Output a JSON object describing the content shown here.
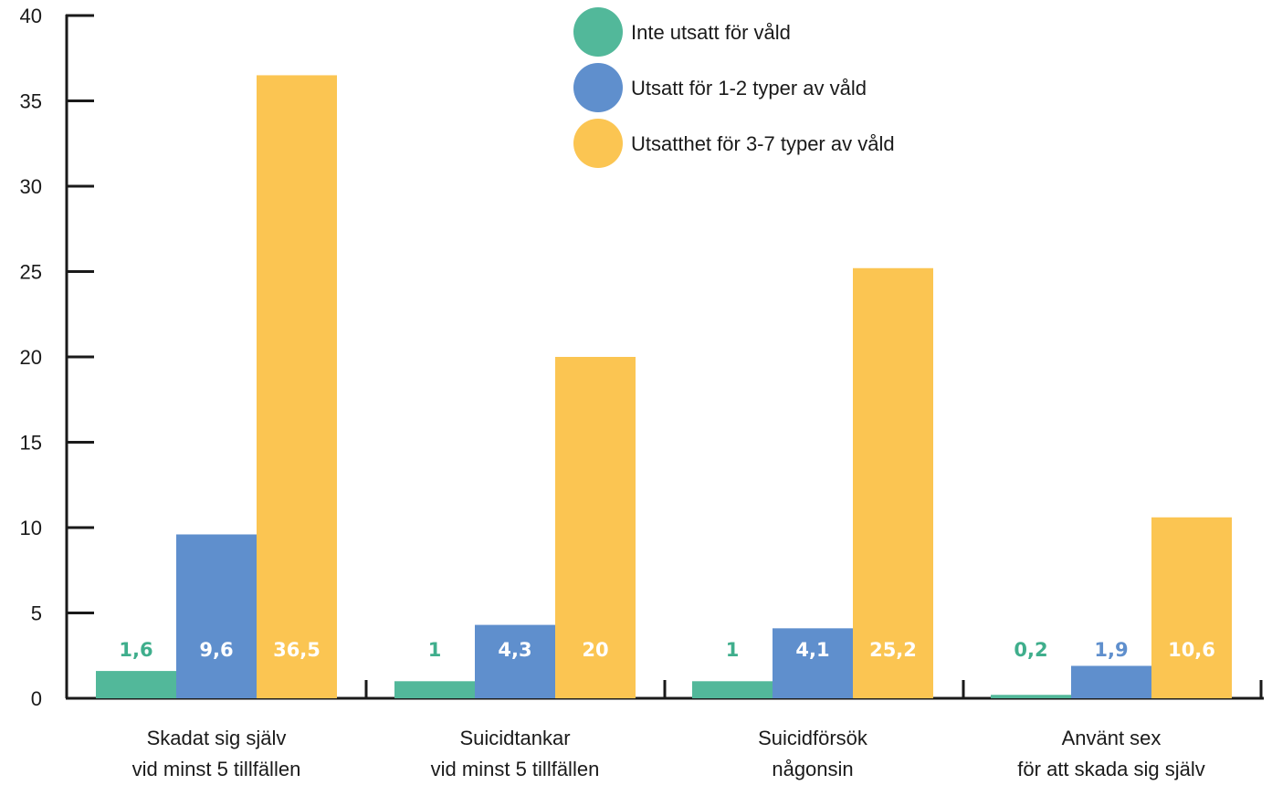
{
  "chart_data": {
    "type": "bar",
    "title": "",
    "xlabel": "",
    "ylabel": "",
    "ylim": [
      0,
      40
    ],
    "yticks": [
      0,
      5,
      10,
      15,
      20,
      25,
      30,
      35,
      40
    ],
    "grid": false,
    "legend_position": "top-center",
    "categories": [
      [
        "Skadat sig själv",
        "vid minst 5 tillfällen"
      ],
      [
        "Suicidtankar",
        "vid minst 5 tillfällen"
      ],
      [
        "Suicidförsök",
        "någonsin"
      ],
      [
        "Använt sex",
        "för att skada sig själv"
      ]
    ],
    "series": [
      {
        "name": "Inte utsatt för våld",
        "color": "#52b89a",
        "label_color": "#3fae8c",
        "values": [
          1.6,
          1,
          1,
          0.2
        ],
        "labels": [
          "1,6",
          "1",
          "1",
          "0,2"
        ]
      },
      {
        "name": "Utsatt för 1-2 typer av våld",
        "color": "#5f8fcd",
        "label_color": "#ffffff",
        "values": [
          9.6,
          4.3,
          4.1,
          1.9
        ],
        "labels": [
          "9,6",
          "4,3",
          "4,1",
          "1,9"
        ]
      },
      {
        "name": "Utsatthet för 3-7 typer av våld",
        "color": "#fbc552",
        "label_color": "#ffffff",
        "values": [
          36.5,
          20,
          25.2,
          10.6
        ],
        "labels": [
          "36,5",
          "20",
          "25,2",
          "10,6"
        ]
      }
    ],
    "last_group_label_colors": [
      "#3fae8c",
      "#5f8fcd",
      "#ffffff"
    ]
  }
}
